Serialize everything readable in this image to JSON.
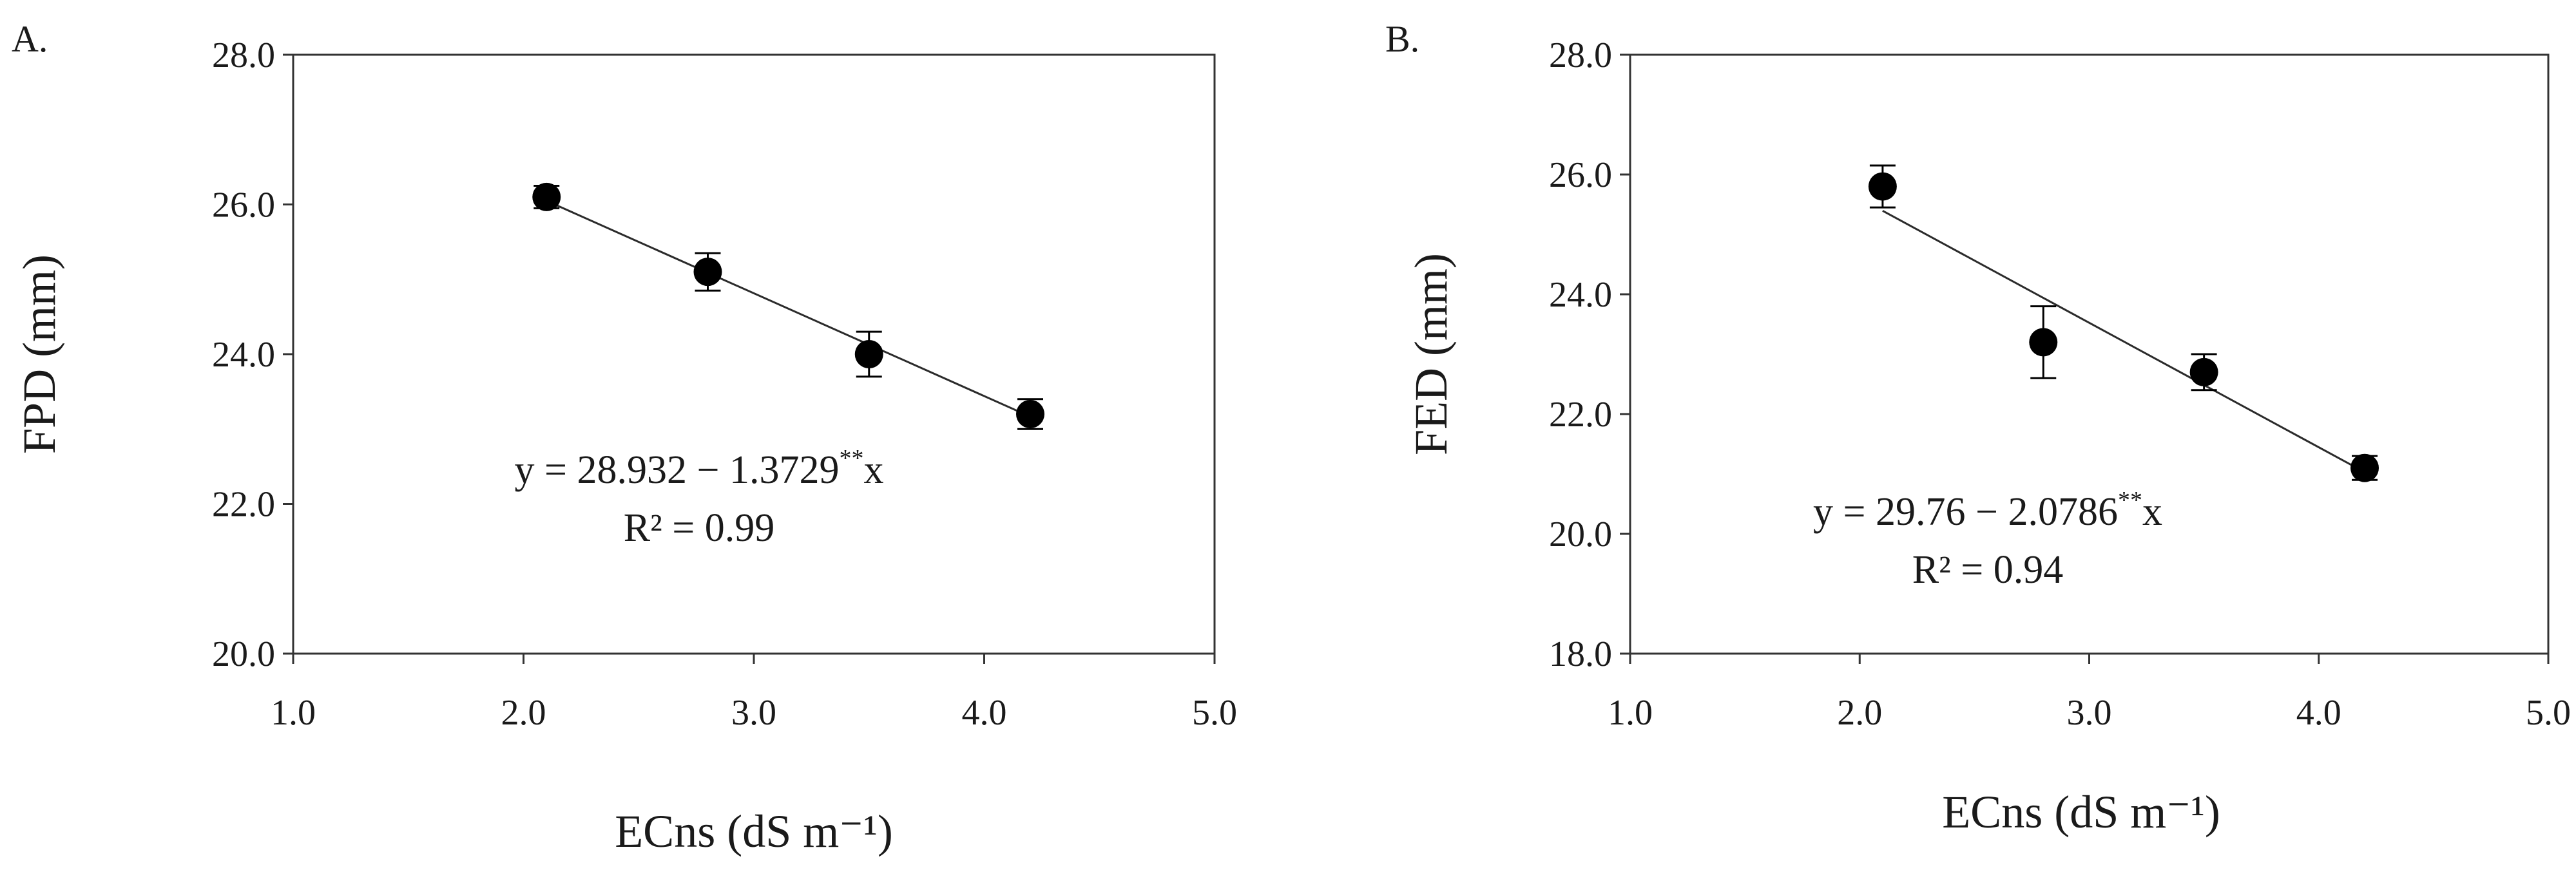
{
  "chart_data": [
    {
      "type": "scatter",
      "panel_label": "A.",
      "xlabel": "ECns (dS m⁻¹)",
      "ylabel": "FPD (mm)",
      "xlim": [
        1.0,
        5.0
      ],
      "ylim": [
        20.0,
        28.0
      ],
      "x_ticks": [
        "1.0",
        "2.0",
        "3.0",
        "4.0",
        "5.0"
      ],
      "y_ticks": [
        "20.0",
        "22.0",
        "24.0",
        "26.0",
        "28.0"
      ],
      "points": [
        {
          "x": 2.1,
          "y": 26.1,
          "err": 0.15
        },
        {
          "x": 2.8,
          "y": 25.1,
          "err": 0.25
        },
        {
          "x": 3.5,
          "y": 24.0,
          "err": 0.3
        },
        {
          "x": 4.2,
          "y": 23.2,
          "err": 0.2
        }
      ],
      "trendline": {
        "intercept": 28.932,
        "slope": -1.3729,
        "x_range": [
          2.1,
          4.2
        ]
      },
      "equation": "y = 28.932 − 1.3729",
      "equation_sup": "**",
      "equation_suffix": "x",
      "r_squared": "R² = 0.99",
      "grid": false,
      "legend": "none"
    },
    {
      "type": "scatter",
      "panel_label": "B.",
      "xlabel": "ECns (dS m⁻¹)",
      "ylabel": "FED (mm)",
      "xlim": [
        1.0,
        5.0
      ],
      "ylim": [
        18.0,
        28.0
      ],
      "x_ticks": [
        "1.0",
        "2.0",
        "3.0",
        "4.0",
        "5.0"
      ],
      "y_ticks": [
        "18.0",
        "20.0",
        "22.0",
        "24.0",
        "26.0",
        "28.0"
      ],
      "points": [
        {
          "x": 2.1,
          "y": 25.8,
          "err": 0.35
        },
        {
          "x": 2.8,
          "y": 23.2,
          "err": 0.6
        },
        {
          "x": 3.5,
          "y": 22.7,
          "err": 0.3
        },
        {
          "x": 4.2,
          "y": 21.1,
          "err": 0.2
        }
      ],
      "trendline": {
        "intercept": 29.76,
        "slope": -2.0786,
        "x_range": [
          2.1,
          4.2
        ]
      },
      "equation": "y =  29.76 − 2.0786",
      "equation_sup": "**",
      "equation_suffix": "x",
      "r_squared": "R² = 0.94",
      "grid": false,
      "legend": "none"
    }
  ],
  "colors": {
    "marker": "#000000",
    "line": "#2b2b2b",
    "axis": "#333333",
    "text": "#1a1a1a"
  }
}
